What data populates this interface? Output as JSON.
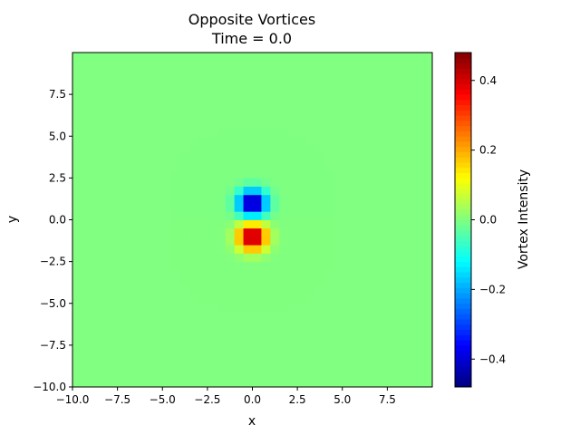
{
  "chart_data": {
    "type": "heatmap",
    "title": "Opposite Vortices",
    "subtitle": "Time = 0.0",
    "xlabel": "x",
    "ylabel": "y",
    "colorbar_label": "Vortex Intensity",
    "colormap": "jet",
    "xlim": [
      -10,
      10
    ],
    "ylim": [
      -10,
      10
    ],
    "x_ticks": [
      -10.0,
      -7.5,
      -5.0,
      -2.5,
      0.0,
      2.5,
      5.0,
      7.5
    ],
    "x_tick_labels": [
      "−10.0",
      "−7.5",
      "−5.0",
      "−2.5",
      "0.0",
      "2.5",
      "5.0",
      "7.5"
    ],
    "y_ticks": [
      -10.0,
      -7.5,
      -5.0,
      -2.5,
      0.0,
      2.5,
      5.0,
      7.5
    ],
    "y_tick_labels": [
      "−10.0",
      "−7.5",
      "−5.0",
      "−2.5",
      "0.0",
      "2.5",
      "5.0",
      "7.5"
    ],
    "colorbar_range": [
      -0.48,
      0.48
    ],
    "colorbar_ticks": [
      -0.4,
      -0.2,
      0.0,
      0.2,
      0.4
    ],
    "colorbar_tick_labels": [
      "−0.4",
      "−0.2",
      "0.0",
      "0.2",
      "0.4"
    ],
    "grid_resolution": 40,
    "grid": false,
    "vortices": [
      {
        "x": 0.0,
        "y": 1.0,
        "intensity": -0.48
      },
      {
        "x": 0.0,
        "y": -1.0,
        "intensity": 0.48
      }
    ]
  }
}
